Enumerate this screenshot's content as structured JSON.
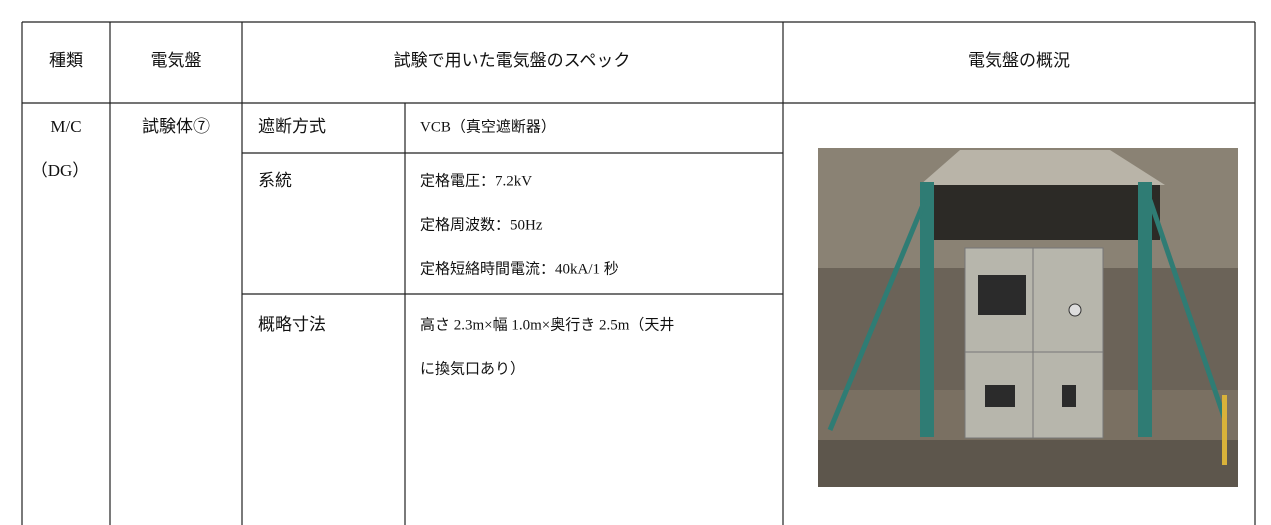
{
  "table": {
    "header": [
      "種類",
      "電気盤",
      "試験で用いた電気盤のスペック",
      "電気盤の概況"
    ],
    "row": {
      "type": [
        "M/C",
        "（DG）"
      ],
      "panel": "試験体⑦",
      "specs": [
        {
          "label": "遮断方式",
          "lines": [
            "VCB（真空遮断器）"
          ]
        },
        {
          "label": "系統",
          "lines": [
            "定格電圧：7.2kV",
            "定格周波数：50Hz",
            "定格短絡時間電流：40kA/1 秒"
          ]
        },
        {
          "label": "概略寸法",
          "lines": [
            "高さ 2.3m×幅 1.0m×奥行き 2.5m（天井",
            "に換気口あり）"
          ]
        }
      ]
    }
  }
}
